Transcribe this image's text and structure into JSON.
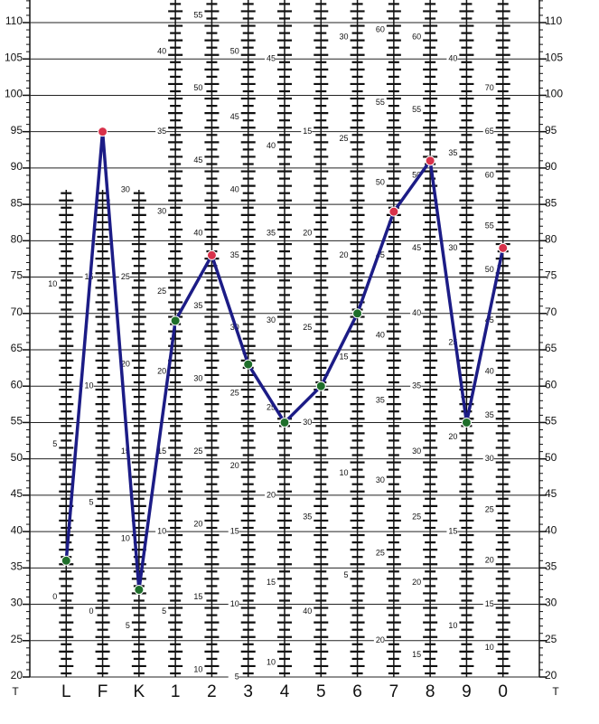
{
  "chart_data": {
    "type": "line",
    "axis_title": "T",
    "categories": [
      "L",
      "F",
      "K",
      "1",
      "2",
      "3",
      "4",
      "5",
      "6",
      "7",
      "8",
      "9",
      "0"
    ],
    "series": [
      {
        "color": "#1c1c86",
        "values": [
          36,
          95,
          32,
          69,
          78,
          63,
          55,
          60,
          70,
          84,
          91,
          55,
          79
        ],
        "point_colors": [
          "#1e6e2a",
          "#d8314a",
          "#1e6e2a",
          "#1e6e2a",
          "#d8314a",
          "#1e6e2a",
          "#1e6e2a",
          "#1e6e2a",
          "#1e6e2a",
          "#d8314a",
          "#d8314a",
          "#1e6e2a",
          "#d8314a"
        ]
      }
    ],
    "ylim": [
      20,
      110
    ],
    "yticks": [
      20,
      25,
      30,
      35,
      40,
      45,
      50,
      55,
      60,
      65,
      70,
      75,
      80,
      85,
      90,
      95,
      100,
      105,
      110
    ],
    "grid": true,
    "raw_scales": [
      {
        "labels": [
          10,
          5,
          0
        ],
        "t": [
          74,
          52,
          31
        ]
      },
      {
        "labels": [
          15,
          10,
          5,
          0
        ],
        "t": [
          75,
          60,
          44,
          29
        ]
      },
      {
        "labels": [
          30,
          25,
          20,
          15,
          10,
          5
        ],
        "t": [
          87,
          75,
          63,
          51,
          39,
          27
        ]
      },
      {
        "labels": [
          40,
          35,
          30,
          25,
          20,
          15,
          10,
          5
        ],
        "t": [
          106,
          95,
          84,
          73,
          62,
          51,
          40,
          29
        ]
      },
      {
        "labels": [
          55,
          50,
          45,
          40,
          35,
          30,
          25,
          20,
          15,
          10
        ],
        "t": [
          111,
          101,
          91,
          81,
          71,
          61,
          51,
          41,
          31,
          21
        ]
      },
      {
        "labels": [
          50,
          45,
          40,
          35,
          30,
          25,
          20,
          15,
          10,
          5
        ],
        "t": [
          106,
          97,
          87,
          78,
          68,
          59,
          49,
          40,
          30,
          20
        ]
      },
      {
        "labels": [
          45,
          40,
          35,
          30,
          25,
          20,
          15,
          10
        ],
        "t": [
          105,
          93,
          81,
          69,
          57,
          45,
          33,
          22
        ]
      },
      {
        "labels": [
          15,
          20,
          25,
          30,
          35,
          40
        ],
        "t": [
          95,
          81,
          68,
          55,
          42,
          29
        ]
      },
      {
        "labels": [
          30,
          25,
          20,
          15,
          10,
          5
        ],
        "t": [
          108,
          94,
          78,
          64,
          48,
          34
        ]
      },
      {
        "labels": [
          60,
          55,
          50,
          45,
          40,
          35,
          30,
          25,
          20
        ],
        "t": [
          109,
          99,
          88,
          78,
          67,
          58,
          47,
          37,
          25
        ]
      },
      {
        "labels": [
          60,
          55,
          50,
          45,
          40,
          35,
          30,
          25,
          20,
          15
        ],
        "t": [
          108,
          98,
          89,
          79,
          70,
          60,
          51,
          42,
          33,
          23
        ]
      },
      {
        "labels": [
          40,
          35,
          30,
          25,
          20,
          15,
          10
        ],
        "t": [
          105,
          92,
          79,
          66,
          53,
          40,
          27
        ]
      },
      {
        "labels": [
          70,
          65,
          60,
          55,
          50,
          45,
          40,
          35,
          30,
          25,
          20,
          15,
          10
        ],
        "t": [
          101,
          95,
          89,
          82,
          76,
          69,
          62,
          56,
          50,
          43,
          36,
          30,
          24
        ]
      }
    ]
  }
}
